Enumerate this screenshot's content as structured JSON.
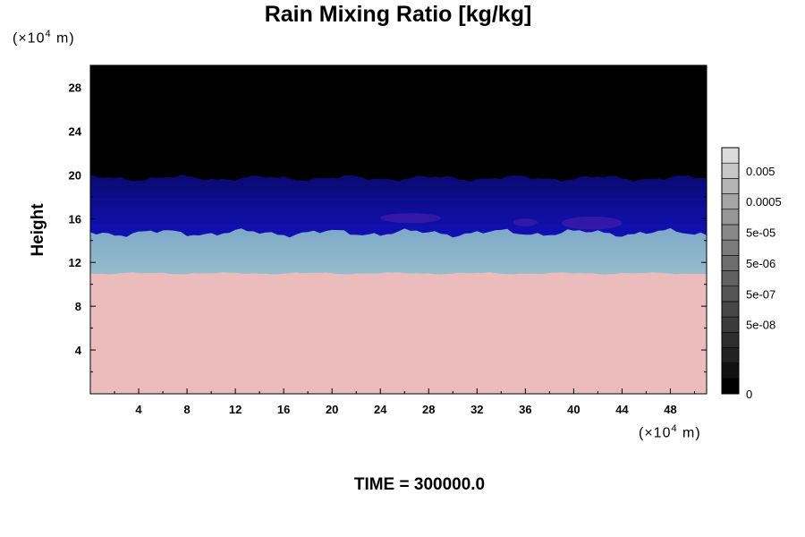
{
  "chart_data": {
    "type": "heatmap",
    "title": "Rain Mixing Ratio [kg/kg]",
    "ylabel": "Height",
    "y_unit_prefix": "(×10",
    "y_unit_exp": "4",
    "y_unit_suffix": " m)",
    "x_unit_prefix": "(×10",
    "x_unit_exp": "4",
    "x_unit_suffix": " m)",
    "time_label": "TIME = 300000.0",
    "xlim": [
      0,
      51
    ],
    "ylim": [
      0,
      30
    ],
    "x_ticks": [
      4,
      8,
      12,
      16,
      20,
      24,
      28,
      32,
      36,
      40,
      44,
      48
    ],
    "x_tick_labels": [
      "4",
      "8",
      "12",
      "16",
      "20",
      "24",
      "28",
      "32",
      "36",
      "40",
      "44",
      "48"
    ],
    "y_ticks": [
      4,
      8,
      12,
      16,
      20,
      24,
      28
    ],
    "y_tick_labels": [
      "4",
      "8",
      "12",
      "16",
      "20",
      "24",
      "28"
    ],
    "layers": [
      {
        "name": "lower",
        "y_range": [
          0,
          11
        ],
        "color": "#ecbcbc"
      },
      {
        "name": "transition-light",
        "y_range": [
          11,
          13.5
        ],
        "color": "#b7c6ce"
      },
      {
        "name": "transition-teal",
        "y_range": [
          13.5,
          15
        ],
        "color": "#8ab6c8"
      },
      {
        "name": "blue-mid",
        "y_range": [
          15,
          18
        ],
        "color": "#1a1ad8"
      },
      {
        "name": "blue-dark",
        "y_range": [
          18,
          20
        ],
        "color": "#0a0a80"
      },
      {
        "name": "upper",
        "y_range": [
          20,
          30
        ],
        "color": "#000000"
      }
    ],
    "colorbar": {
      "levels": 16,
      "colors": [
        "#000000",
        "#111111",
        "#222222",
        "#2e2e2e",
        "#3b3b3b",
        "#474747",
        "#545454",
        "#616161",
        "#6e6e6e",
        "#7b7b7b",
        "#888888",
        "#969696",
        "#a5a5a5",
        "#b5b5b5",
        "#c6c6c6",
        "#dcdcdc"
      ],
      "labels": [
        {
          "text": "0.005",
          "level": 14
        },
        {
          "text": "0.0005",
          "level": 12
        },
        {
          "text": "5e-05",
          "level": 10
        },
        {
          "text": "5e-06",
          "level": 8
        },
        {
          "text": "5e-07",
          "level": 6
        },
        {
          "text": "5e-08",
          "level": 4
        },
        {
          "text": "0",
          "level": 0
        }
      ]
    }
  }
}
